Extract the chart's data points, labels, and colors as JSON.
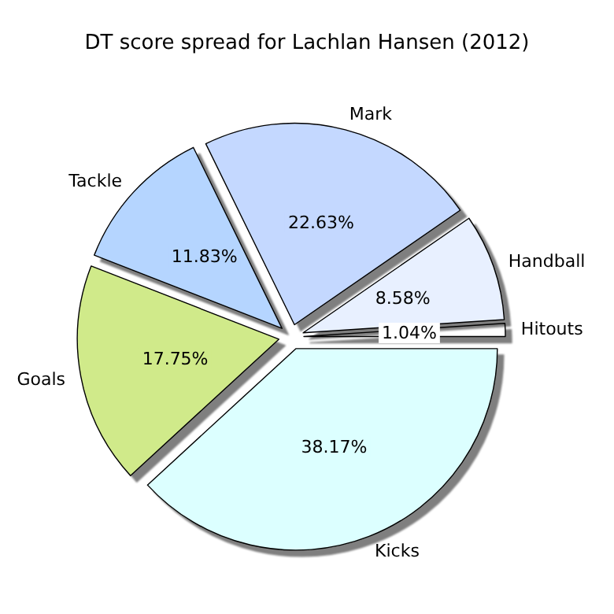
{
  "chart_data": {
    "type": "pie",
    "title": "DT score spread for Lachlan Hansen (2012)",
    "categories": [
      "Hitouts",
      "Handball",
      "Mark",
      "Tackle",
      "Goals",
      "Kicks"
    ],
    "values": [
      1.04,
      8.58,
      22.63,
      11.83,
      17.75,
      38.17
    ],
    "colors": [
      "#ffffff",
      "#e8f0ff",
      "#c4d8ff",
      "#b5d5ff",
      "#d0ea8a",
      "#dcffff"
    ],
    "value_labels": [
      "1.04%",
      "8.58%",
      "22.63%",
      "11.83%",
      "17.75%",
      "38.17%"
    ]
  }
}
